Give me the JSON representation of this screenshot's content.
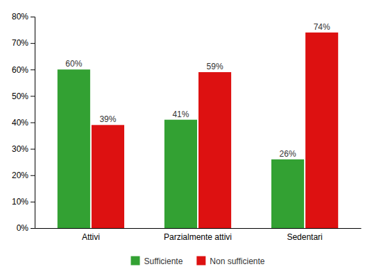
{
  "chart_data": {
    "type": "bar",
    "categories": [
      "Attivi",
      "Parzialmente attivi",
      "Sedentari"
    ],
    "series": [
      {
        "name": "Sufficiente",
        "color": "#33a133",
        "values": [
          60,
          41,
          26
        ],
        "value_labels": [
          "60%",
          "41%",
          "26%"
        ]
      },
      {
        "name": "Non sufficiente",
        "color": "#dd1111",
        "values": [
          39,
          59,
          74
        ],
        "value_labels": [
          "39%",
          "59%",
          "74%"
        ]
      }
    ],
    "ylim": [
      0,
      80
    ],
    "yticks": [
      {
        "value": 0,
        "label": "0%"
      },
      {
        "value": 10,
        "label": "10%"
      },
      {
        "value": 20,
        "label": "20%"
      },
      {
        "value": 30,
        "label": "30%"
      },
      {
        "value": 40,
        "label": "40%"
      },
      {
        "value": 50,
        "label": "50%"
      },
      {
        "value": 60,
        "label": "60%"
      },
      {
        "value": 70,
        "label": "70%"
      },
      {
        "value": 80,
        "label": "80%"
      }
    ],
    "data_labels": true,
    "grid": false,
    "legend": "bottom"
  }
}
